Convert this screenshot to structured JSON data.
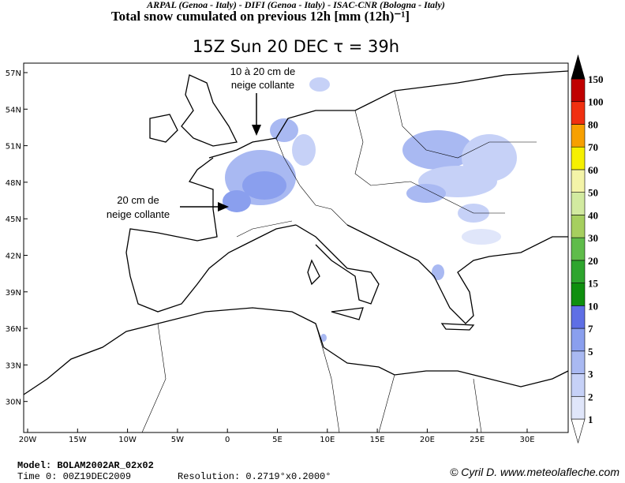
{
  "header": {
    "agencies": "ARPAL (Genoa - Italy)  -  DIFI (Genoa - Italy)  -  ISAC-CNR (Bologna - Italy)",
    "title": "Total snow cumulated on previous 12h [mm (12h)⁻¹]",
    "subtitle": "15Z Sun 20 DEC  τ = 39h"
  },
  "map": {
    "lat_labels": [
      "57N",
      "54N",
      "51N",
      "48N",
      "45N",
      "42N",
      "39N",
      "36N",
      "33N",
      "30N"
    ],
    "lon_labels": [
      "20W",
      "15W",
      "10W",
      "5W",
      "0",
      "5E",
      "10E",
      "15E",
      "20E",
      "25E",
      "30E"
    ],
    "annotations": [
      {
        "lines": [
          "10 à 20 cm de",
          "neige collante"
        ]
      },
      {
        "lines": [
          "20 cm de",
          "neige collante"
        ]
      }
    ]
  },
  "colorbar": {
    "levels": [
      "1",
      "2",
      "3",
      "5",
      "7",
      "10",
      "15",
      "20",
      "30",
      "40",
      "50",
      "60",
      "70",
      "80",
      "100",
      "150"
    ],
    "colors": [
      "#ffffff",
      "#e0e6fa",
      "#c6d1f7",
      "#a9b9f2",
      "#8a9fee",
      "#5f6fe5",
      "#0f8f0f",
      "#2ea52e",
      "#5fbc4a",
      "#a6cf5f",
      "#d2eaa0",
      "#f4f4a8",
      "#f6f000",
      "#f7a000",
      "#f03010",
      "#c00000",
      "#000000"
    ]
  },
  "footer": {
    "model": "Model:  BOLAM2002AR_02x02",
    "time": "Time  0:  00Z19DEC2009",
    "resolution": "Resolution:  0.2719°x0.2000°",
    "credit": "© Cyril D. www.meteolafleche.com"
  }
}
